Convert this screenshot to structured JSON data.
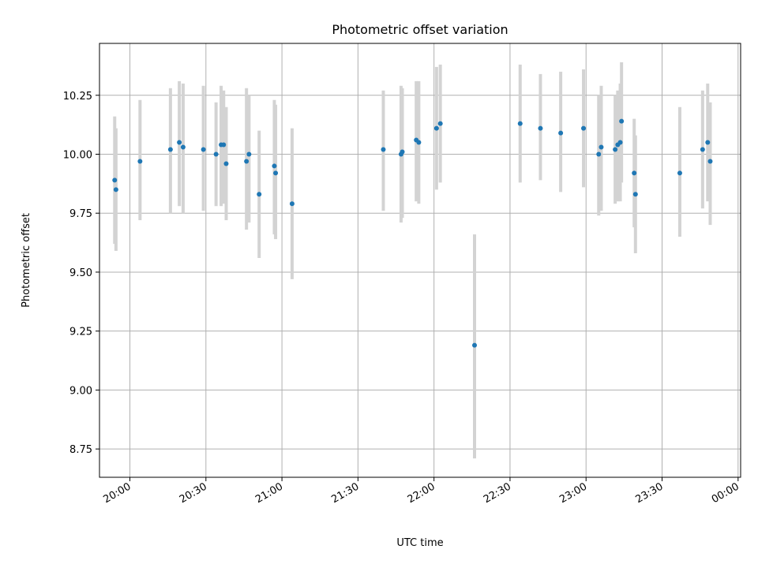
{
  "chart_data": {
    "type": "scatter",
    "title": "Photometric offset variation",
    "xlabel": "UTC time",
    "ylabel": "Photometric offset",
    "x_axis_type": "time",
    "xlim": [
      "19:48",
      "00:01"
    ],
    "ylim": [
      8.63,
      10.47
    ],
    "x_ticks": [
      "20:00",
      "20:30",
      "21:00",
      "21:30",
      "22:00",
      "22:30",
      "23:00",
      "23:30",
      "00:00"
    ],
    "y_ticks": [
      "8.75",
      "9.00",
      "9.25",
      "9.50",
      "9.75",
      "10.00",
      "10.25"
    ],
    "grid": true,
    "legend": "none",
    "marker_color": "#1f77b4",
    "errorbar_color": "#d3d3d3",
    "points": [
      {
        "time": "19:54",
        "offset": 9.89,
        "low": 9.62,
        "high": 10.16
      },
      {
        "time": "19:54:30",
        "offset": 9.85,
        "low": 9.59,
        "high": 10.11
      },
      {
        "time": "20:04",
        "offset": 9.97,
        "low": 9.72,
        "high": 10.23
      },
      {
        "time": "20:16",
        "offset": 10.02,
        "low": 9.75,
        "high": 10.28
      },
      {
        "time": "20:19:30",
        "offset": 10.05,
        "low": 9.78,
        "high": 10.31
      },
      {
        "time": "20:21",
        "offset": 10.03,
        "low": 9.75,
        "high": 10.3
      },
      {
        "time": "20:29",
        "offset": 10.02,
        "low": 9.76,
        "high": 10.29
      },
      {
        "time": "20:34",
        "offset": 10.0,
        "low": 9.78,
        "high": 10.22
      },
      {
        "time": "20:36",
        "offset": 10.04,
        "low": 9.78,
        "high": 10.29
      },
      {
        "time": "20:37",
        "offset": 10.04,
        "low": 9.79,
        "high": 10.27
      },
      {
        "time": "20:38",
        "offset": 9.96,
        "low": 9.72,
        "high": 10.2
      },
      {
        "time": "20:46",
        "offset": 9.97,
        "low": 9.68,
        "high": 10.28
      },
      {
        "time": "20:47",
        "offset": 10.0,
        "low": 9.71,
        "high": 10.25
      },
      {
        "time": "20:51",
        "offset": 9.83,
        "low": 9.56,
        "high": 10.1
      },
      {
        "time": "20:57",
        "offset": 9.95,
        "low": 9.66,
        "high": 10.23
      },
      {
        "time": "20:57:30",
        "offset": 9.92,
        "low": 9.64,
        "high": 10.21
      },
      {
        "time": "21:04",
        "offset": 9.79,
        "low": 9.47,
        "high": 10.11
      },
      {
        "time": "21:40",
        "offset": 10.02,
        "low": 9.76,
        "high": 10.27
      },
      {
        "time": "21:47",
        "offset": 10.0,
        "low": 9.71,
        "high": 10.29
      },
      {
        "time": "21:47:30",
        "offset": 10.01,
        "low": 9.73,
        "high": 10.28
      },
      {
        "time": "21:53",
        "offset": 10.06,
        "low": 9.8,
        "high": 10.31
      },
      {
        "time": "21:54",
        "offset": 10.05,
        "low": 9.79,
        "high": 10.31
      },
      {
        "time": "22:01",
        "offset": 10.11,
        "low": 9.85,
        "high": 10.37
      },
      {
        "time": "22:02:30",
        "offset": 10.13,
        "low": 9.88,
        "high": 10.38
      },
      {
        "time": "22:16",
        "offset": 9.19,
        "low": 8.71,
        "high": 9.66
      },
      {
        "time": "22:34",
        "offset": 10.13,
        "low": 9.88,
        "high": 10.38
      },
      {
        "time": "22:42",
        "offset": 10.11,
        "low": 9.89,
        "high": 10.34
      },
      {
        "time": "22:50",
        "offset": 10.09,
        "low": 9.84,
        "high": 10.35
      },
      {
        "time": "22:59",
        "offset": 10.11,
        "low": 9.86,
        "high": 10.36
      },
      {
        "time": "23:05",
        "offset": 10.0,
        "low": 9.74,
        "high": 10.25
      },
      {
        "time": "23:06",
        "offset": 10.03,
        "low": 9.76,
        "high": 10.29
      },
      {
        "time": "23:11:30",
        "offset": 10.02,
        "low": 9.79,
        "high": 10.25
      },
      {
        "time": "23:12:30",
        "offset": 10.04,
        "low": 9.8,
        "high": 10.27
      },
      {
        "time": "23:13:30",
        "offset": 10.05,
        "low": 9.8,
        "high": 10.3
      },
      {
        "time": "23:14",
        "offset": 10.14,
        "low": 9.88,
        "high": 10.39
      },
      {
        "time": "23:19",
        "offset": 9.92,
        "low": 9.69,
        "high": 10.15
      },
      {
        "time": "23:19:30",
        "offset": 9.83,
        "low": 9.58,
        "high": 10.08
      },
      {
        "time": "23:37",
        "offset": 9.92,
        "low": 9.65,
        "high": 10.2
      },
      {
        "time": "23:46",
        "offset": 10.02,
        "low": 9.77,
        "high": 10.27
      },
      {
        "time": "23:48",
        "offset": 10.05,
        "low": 9.8,
        "high": 10.3
      },
      {
        "time": "23:49",
        "offset": 9.97,
        "low": 9.7,
        "high": 10.22
      }
    ]
  }
}
